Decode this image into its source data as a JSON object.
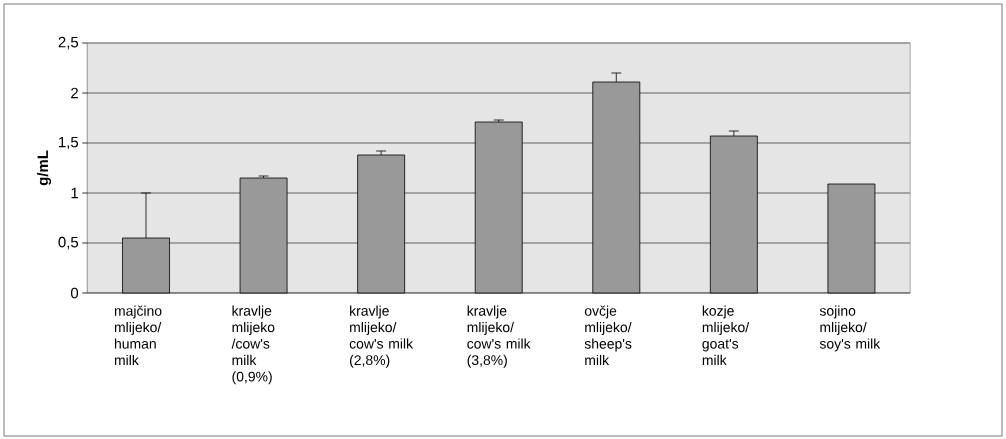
{
  "chart_data": {
    "type": "bar",
    "categories": [
      "majčino mlijeko/ human milk",
      "kravlje mlijeko /cow's milk (0,9%)",
      "kravlje mlijeko/ cow's milk (2,8%)",
      "kravlje mlijeko/ cow's milk (3,8%)",
      "ovčje mlijeko/ sheep's milk",
      "kozje mlijeko/ goat's milk",
      "sojino mlijeko/ soy's milk"
    ],
    "values": [
      0.55,
      1.15,
      1.38,
      1.71,
      2.11,
      1.57,
      1.09
    ],
    "errors": [
      [
        0.55,
        1.0
      ],
      [
        1.15,
        1.17
      ],
      [
        1.38,
        1.42
      ],
      [
        1.71,
        1.73
      ],
      [
        2.11,
        2.2
      ],
      [
        1.57,
        1.62
      ],
      null
    ],
    "color": "#999999",
    "ylabel": "g/mL",
    "ylim": [
      0,
      2.5
    ],
    "yticks": [
      0,
      {
        "value": 0.5,
        "label": "0,5"
      },
      1,
      {
        "value": 1.5,
        "label": "1,5"
      },
      2,
      {
        "value": 2.5,
        "label": "2,5"
      }
    ],
    "grid": "y"
  }
}
